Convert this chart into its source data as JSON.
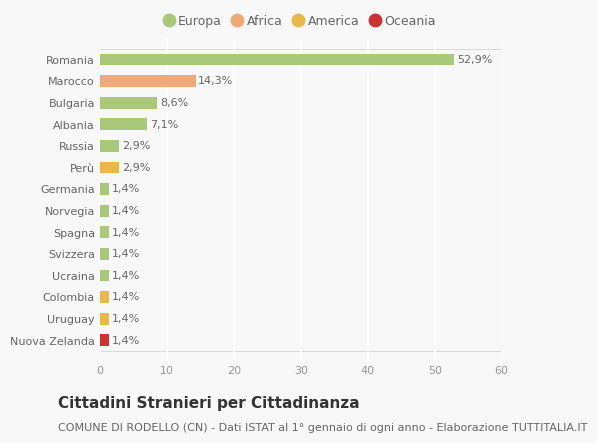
{
  "categories": [
    "Nuova Zelanda",
    "Uruguay",
    "Colombia",
    "Ucraina",
    "Svizzera",
    "Spagna",
    "Norvegia",
    "Germania",
    "Perù",
    "Russia",
    "Albania",
    "Bulgaria",
    "Marocco",
    "Romania"
  ],
  "values": [
    1.4,
    1.4,
    1.4,
    1.4,
    1.4,
    1.4,
    1.4,
    1.4,
    2.9,
    2.9,
    7.1,
    8.6,
    14.3,
    52.9
  ],
  "labels": [
    "1,4%",
    "1,4%",
    "1,4%",
    "1,4%",
    "1,4%",
    "1,4%",
    "1,4%",
    "1,4%",
    "2,9%",
    "2,9%",
    "7,1%",
    "8,6%",
    "14,3%",
    "52,9%"
  ],
  "colors": [
    "#cc3333",
    "#e8b84b",
    "#e8b84b",
    "#a8c87a",
    "#a8c87a",
    "#a8c87a",
    "#a8c87a",
    "#a8c87a",
    "#e8b84b",
    "#a8c87a",
    "#a8c87a",
    "#a8c87a",
    "#f0aa78",
    "#a8c87a"
  ],
  "legend_labels": [
    "Europa",
    "Africa",
    "America",
    "Oceania"
  ],
  "legend_colors": [
    "#a8c87a",
    "#f0aa78",
    "#e8b84b",
    "#cc3333"
  ],
  "xlim": [
    0,
    60
  ],
  "xticks": [
    0,
    10,
    20,
    30,
    40,
    50,
    60
  ],
  "title": "Cittadini Stranieri per Cittadinanza",
  "subtitle": "COMUNE DI RODELLO (CN) - Dati ISTAT al 1° gennaio di ogni anno - Elaborazione TUTTITALIA.IT",
  "bg_color": "#f8f8f8",
  "grid_color": "#ffffff",
  "bar_height": 0.55,
  "title_fontsize": 11,
  "subtitle_fontsize": 8,
  "label_fontsize": 8,
  "tick_fontsize": 8,
  "legend_fontsize": 9
}
